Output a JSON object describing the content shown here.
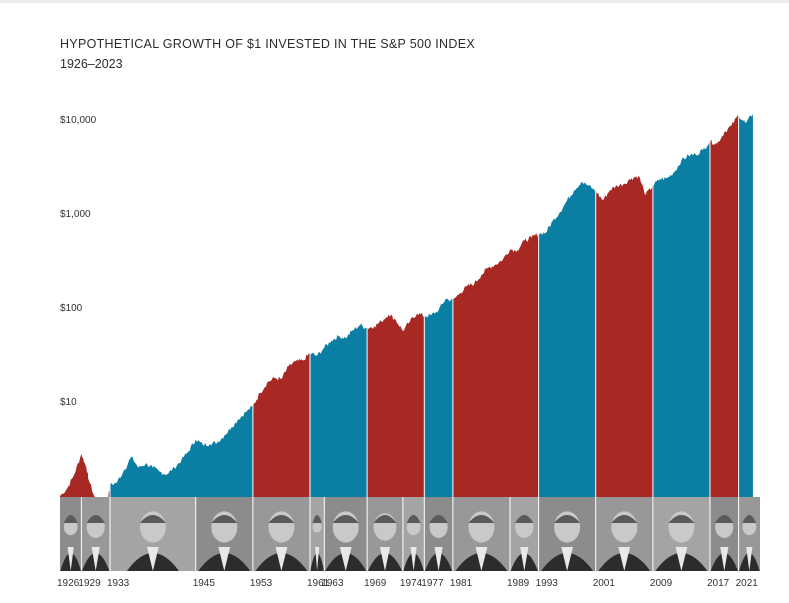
{
  "title": "HYPOTHETICAL GROWTH OF $1 INVESTED IN THE S&P 500 INDEX",
  "subtitle": "1926–2023",
  "colors": {
    "republican": "#a82824",
    "democrat": "#0a7ea3",
    "portrait_band": "#9a9a9a"
  },
  "chart_data": {
    "type": "area",
    "title": "HYPOTHETICAL GROWTH OF $1 INVESTED IN THE S&P 500 INDEX",
    "subtitle": "1926–2023",
    "y_scale": "log",
    "ylim": [
      1,
      20000
    ],
    "xlim": [
      1926,
      2024
    ],
    "y_ticks": [
      "$10",
      "$100",
      "$1,000",
      "$10,000"
    ],
    "y_tick_values": [
      10,
      100,
      1000,
      10000
    ],
    "x_ticks": [
      "1926",
      "1929",
      "1933",
      "1945",
      "1953",
      "1961",
      "1963",
      "1969",
      "1974",
      "1977",
      "1981",
      "1989",
      "1993",
      "2001",
      "2009",
      "2017",
      "2021"
    ],
    "x_tick_values": [
      1926,
      1929,
      1933,
      1945,
      1953,
      1961,
      1963,
      1969,
      1974,
      1977,
      1981,
      1989,
      1993,
      2001,
      2009,
      2017,
      2021
    ],
    "series": {
      "x": [
        1926,
        1927,
        1928,
        1929,
        1929.7,
        1930,
        1931,
        1932,
        1932.5,
        1933,
        1934,
        1935,
        1936,
        1937,
        1938,
        1939,
        1940,
        1941,
        1942,
        1943,
        1944,
        1945,
        1946,
        1947,
        1948,
        1949,
        1950,
        1951,
        1952,
        1953,
        1954,
        1955,
        1956,
        1957,
        1958,
        1959,
        1960,
        1961,
        1962,
        1963,
        1964,
        1965,
        1966,
        1967,
        1968,
        1969,
        1970,
        1971,
        1972,
        1973,
        1974,
        1975,
        1976,
        1977,
        1978,
        1979,
        1980,
        1981,
        1982,
        1983,
        1984,
        1985,
        1986,
        1987,
        1988,
        1989,
        1990,
        1991,
        1992,
        1993,
        1994,
        1995,
        1996,
        1997,
        1998,
        1999,
        2000,
        2001,
        2002,
        2003,
        2004,
        2005,
        2006,
        2007,
        2008,
        2009,
        2010,
        2011,
        2012,
        2013,
        2014,
        2015,
        2016,
        2017,
        2018,
        2019,
        2020,
        2021,
        2022,
        2023
      ],
      "y": [
        1.0,
        1.2,
        1.7,
        2.8,
        2.0,
        1.5,
        0.9,
        0.8,
        0.7,
        1.3,
        1.4,
        1.9,
        2.6,
        2.0,
        2.2,
        2.0,
        1.8,
        1.7,
        2.0,
        2.4,
        3.0,
        4.0,
        3.5,
        3.6,
        3.7,
        4.4,
        5.4,
        6.6,
        7.8,
        9.0,
        12.5,
        16.0,
        18.0,
        17.5,
        24.0,
        27.0,
        27.5,
        33.0,
        31.0,
        38.0,
        45.0,
        50.0,
        48.0,
        58.0,
        66.0,
        61.0,
        64.0,
        72.0,
        86.0,
        75.0,
        57.0,
        72.0,
        88.0,
        82.0,
        84.0,
        95.0,
        125.0,
        120.0,
        145.0,
        170.0,
        182.0,
        225.0,
        270.0,
        290.0,
        330.0,
        420.0,
        410.0,
        520.0,
        560.0,
        620.0,
        630.0,
        850.0,
        1050.0,
        1400.0,
        1800.0,
        2200.0,
        2000.0,
        1750.0,
        1400.0,
        1800.0,
        2000.0,
        2100.0,
        2400.0,
        2550.0,
        1600.0,
        2000.0,
        2350.0,
        2400.0,
        2800.0,
        3700.0,
        4200.0,
        4300.0,
        4800.0,
        5900.0,
        5600.0,
        7400.0,
        8700.0,
        11300.0,
        9200.0,
        11600.0
      ]
    },
    "terms": [
      {
        "start": 1926,
        "end": 1933,
        "party": "republican"
      },
      {
        "start": 1933,
        "end": 1953,
        "party": "democrat"
      },
      {
        "start": 1953,
        "end": 1961,
        "party": "republican"
      },
      {
        "start": 1961,
        "end": 1969,
        "party": "democrat"
      },
      {
        "start": 1969,
        "end": 1977,
        "party": "republican"
      },
      {
        "start": 1977,
        "end": 1981,
        "party": "democrat"
      },
      {
        "start": 1981,
        "end": 1993,
        "party": "republican"
      },
      {
        "start": 1993,
        "end": 2001,
        "party": "democrat"
      },
      {
        "start": 2001,
        "end": 2009,
        "party": "republican"
      },
      {
        "start": 2009,
        "end": 2017,
        "party": "democrat"
      },
      {
        "start": 2017,
        "end": 2021,
        "party": "republican"
      },
      {
        "start": 2021,
        "end": 2024,
        "party": "democrat"
      }
    ],
    "portraits": [
      {
        "start": 1926,
        "end": 1929
      },
      {
        "start": 1929,
        "end": 1933
      },
      {
        "start": 1933,
        "end": 1945
      },
      {
        "start": 1945,
        "end": 1953
      },
      {
        "start": 1953,
        "end": 1961
      },
      {
        "start": 1961,
        "end": 1963
      },
      {
        "start": 1963,
        "end": 1969
      },
      {
        "start": 1969,
        "end": 1974
      },
      {
        "start": 1974,
        "end": 1977
      },
      {
        "start": 1977,
        "end": 1981
      },
      {
        "start": 1981,
        "end": 1989
      },
      {
        "start": 1989,
        "end": 1993
      },
      {
        "start": 1993,
        "end": 2001
      },
      {
        "start": 2001,
        "end": 2009
      },
      {
        "start": 2009,
        "end": 2017
      },
      {
        "start": 2017,
        "end": 2021
      },
      {
        "start": 2021,
        "end": 2024
      }
    ]
  }
}
